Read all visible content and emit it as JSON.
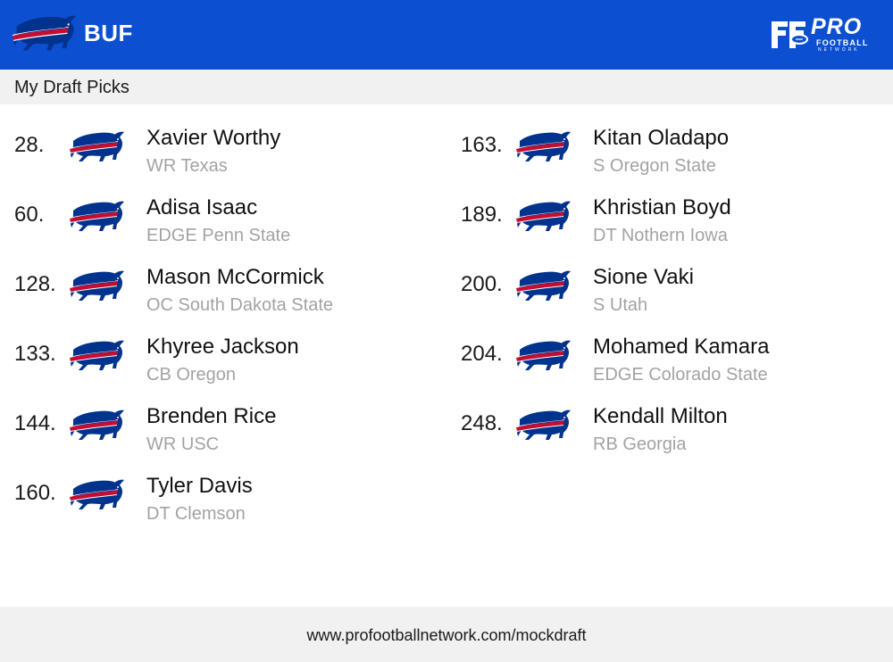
{
  "header": {
    "team_abbr": "BUF",
    "team_logo_icon": "buffalo-bills-logo-icon",
    "brand_logo_icon": "pro-football-network-logo-icon",
    "brand_line1": "PRO",
    "brand_line2": "FOOTBALL",
    "brand_line3": "NETWORK",
    "background_color": "#0d4fd1"
  },
  "section": {
    "title": "My Draft Picks"
  },
  "picks_left": [
    {
      "number": "28.",
      "name": "Xavier Worthy",
      "detail": "WR Texas"
    },
    {
      "number": "60.",
      "name": "Adisa Isaac",
      "detail": "EDGE Penn State"
    },
    {
      "number": "128.",
      "name": "Mason McCormick",
      "detail": "OC South Dakota State"
    },
    {
      "number": "133.",
      "name": "Khyree Jackson",
      "detail": "CB Oregon"
    },
    {
      "number": "144.",
      "name": "Brenden Rice",
      "detail": "WR USC"
    },
    {
      "number": "160.",
      "name": "Tyler Davis",
      "detail": "DT Clemson"
    }
  ],
  "picks_right": [
    {
      "number": "163.",
      "name": "Kitan Oladapo",
      "detail": "S Oregon State"
    },
    {
      "number": "189.",
      "name": "Khristian Boyd",
      "detail": "DT Nothern Iowa"
    },
    {
      "number": "200.",
      "name": "Sione Vaki",
      "detail": "S Utah"
    },
    {
      "number": "204.",
      "name": "Mohamed Kamara",
      "detail": "EDGE Colorado State"
    },
    {
      "number": "248.",
      "name": "Kendall Milton",
      "detail": "RB Georgia"
    }
  ],
  "footer": {
    "url": "www.profootballnetwork.com/mockdraft"
  },
  "colors": {
    "bills_blue": "#00338d",
    "bills_red": "#c60c30",
    "detail_gray": "#a3a3a3"
  }
}
